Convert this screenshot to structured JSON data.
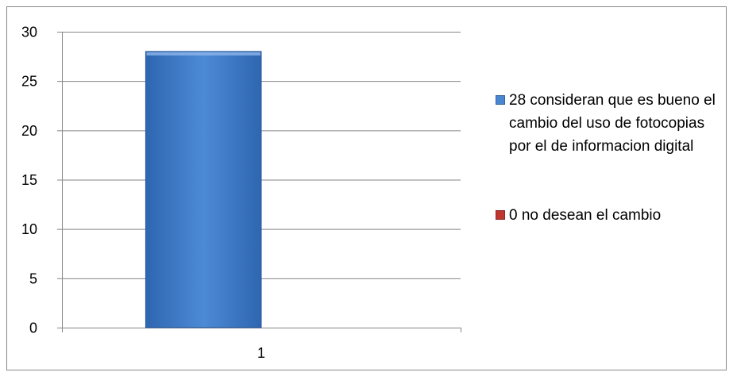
{
  "colors": {
    "series_1": "#4a86d2",
    "series_2": "#c0352f",
    "gridline": "#868686",
    "border": "#888888",
    "text": "#000000"
  },
  "chart_data": {
    "type": "bar",
    "title": "",
    "xlabel": "",
    "ylabel": "",
    "categories": [
      "1"
    ],
    "ylim": [
      0,
      30
    ],
    "yticks": [
      "0",
      "5",
      "10",
      "15",
      "20",
      "25",
      "30"
    ],
    "grid": true,
    "legend_position": "right",
    "series": [
      {
        "name": "28 consideran que es bueno el cambio del uso de fotocopias por el de informacion digital",
        "values": [
          28
        ]
      },
      {
        "name": "0 no desean el cambio",
        "values": [
          0
        ]
      }
    ]
  }
}
